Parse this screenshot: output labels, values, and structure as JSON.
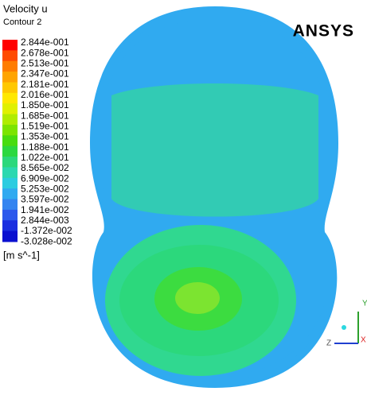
{
  "legend": {
    "title": "Velocity u",
    "subtitle": "Contour 2",
    "levels": [
      "2.844e-001",
      "2.678e-001",
      "2.513e-001",
      "2.347e-001",
      "2.181e-001",
      "2.016e-001",
      "1.850e-001",
      "1.685e-001",
      "1.519e-001",
      "1.353e-001",
      "1.188e-001",
      "1.022e-001",
      "8.565e-002",
      "6.909e-002",
      "5.253e-002",
      "3.597e-002",
      "1.941e-002",
      "2.844e-003",
      "-1.372e-002",
      "-3.028e-002"
    ],
    "colors": [
      "#ff0000",
      "#ff4a00",
      "#ff7c00",
      "#ffa400",
      "#ffc800",
      "#ffe800",
      "#e0f000",
      "#b0ec00",
      "#7ce400",
      "#48dc10",
      "#2cd840",
      "#2cd87c",
      "#2cd8b0",
      "#2ccce0",
      "#30aaf0",
      "#3484f0",
      "#2c58ec",
      "#1a2ee0",
      "#0a10d0"
    ],
    "units": "[m s^-1]"
  },
  "logo": "ANSYS",
  "axes": {
    "y": "Y",
    "z": "Z",
    "x": "X"
  }
}
